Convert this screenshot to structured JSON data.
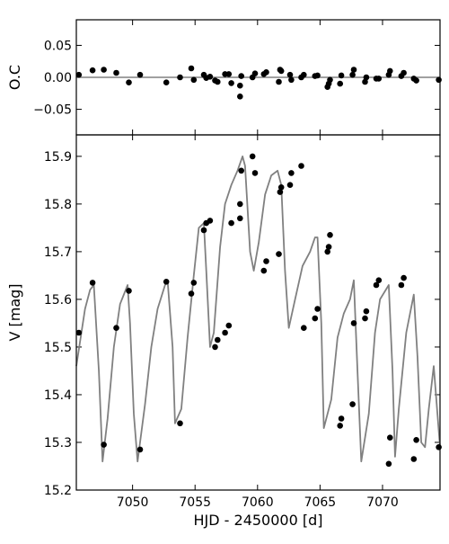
{
  "chart_data": [
    {
      "type": "scatter",
      "ylabel": "O.C",
      "xlim": [
        7045.5,
        7074.6
      ],
      "ylim": [
        0.09,
        -0.09
      ],
      "y_inverted": true,
      "yticks": [
        -0.05,
        0.0,
        0.05
      ],
      "ytick_labels": [
        "−0.05",
        "0.00",
        "0.05"
      ],
      "xticks": [
        7050,
        7055,
        7060,
        7065,
        7070
      ],
      "reference_line": 0.0,
      "reference_line_color": "#808080",
      "point_color": "#000000",
      "series": [
        {
          "x": [
            7045.7,
            7046.8,
            7047.7,
            7048.7,
            7049.7,
            7050.6,
            7052.7,
            7053.8,
            7054.7,
            7054.9,
            7055.7,
            7055.9,
            7056.2,
            7056.6,
            7056.8,
            7057.4,
            7057.7,
            7057.9,
            7058.6,
            7058.6,
            7058.7,
            7059.6,
            7059.8,
            7060.5,
            7060.7,
            7061.7,
            7061.8,
            7061.9,
            7062.6,
            7062.7,
            7063.5,
            7063.7,
            7064.6,
            7064.8,
            7065.6,
            7065.7,
            7065.8,
            7066.6,
            7066.7,
            7067.6,
            7067.7,
            7068.6,
            7068.7,
            7069.5,
            7069.7,
            7070.5,
            7070.6,
            7071.5,
            7071.7,
            7072.5,
            7072.7,
            7074.5
          ],
          "y": [
            0.004,
            0.011,
            0.012,
            0.007,
            -0.008,
            0.004,
            -0.008,
            0.0,
            0.014,
            -0.004,
            0.004,
            -0.001,
            0.001,
            -0.005,
            -0.007,
            0.005,
            0.005,
            -0.009,
            -0.03,
            -0.013,
            0.002,
            0.0,
            0.006,
            0.005,
            0.008,
            -0.007,
            0.012,
            0.01,
            0.004,
            -0.004,
            0.0,
            0.004,
            0.002,
            0.003,
            -0.015,
            -0.01,
            -0.004,
            -0.01,
            0.003,
            0.004,
            0.012,
            -0.007,
            0.0,
            -0.002,
            -0.002,
            0.004,
            0.01,
            0.002,
            0.007,
            -0.002,
            -0.005,
            -0.004
          ]
        }
      ]
    },
    {
      "type": "line",
      "xlabel": "HJD - 2450000 [d]",
      "ylabel": "V [mag]",
      "xlim": [
        7045.5,
        7074.6
      ],
      "ylim": [
        15.945,
        15.2
      ],
      "y_inverted": true,
      "xticks": [
        7050,
        7055,
        7060,
        7065,
        7070
      ],
      "xtick_labels": [
        "7050",
        "7055",
        "7060",
        "7065",
        "7070"
      ],
      "yticks": [
        15.2,
        15.3,
        15.4,
        15.5,
        15.6,
        15.7,
        15.8,
        15.9
      ],
      "ytick_labels": [
        "15.2",
        "15.3",
        "15.4",
        "15.5",
        "15.6",
        "15.7",
        "15.8",
        "15.9"
      ],
      "line_color": "#808080",
      "point_color": "#000000",
      "series": [
        {
          "role": "model",
          "x": [
            7045.5,
            7046.2,
            7046.6,
            7046.9,
            7047.3,
            7047.6,
            7048.0,
            7048.5,
            7049.0,
            7049.6,
            7049.8,
            7050.1,
            7050.4,
            7051.0,
            7051.5,
            7052.0,
            7052.6,
            7052.8,
            7053.2,
            7053.4,
            7053.9,
            7054.4,
            7054.9,
            7055.3,
            7055.7,
            7055.9,
            7056.2,
            7056.5,
            7057.0,
            7057.4,
            7057.9,
            7058.4,
            7058.8,
            7059.0,
            7059.4,
            7059.7,
            7060.1,
            7060.6,
            7061.1,
            7061.6,
            7061.9,
            7062.2,
            7062.5,
            7063.0,
            7063.6,
            7064.2,
            7064.6,
            7064.8,
            7065.1,
            7065.3,
            7065.9,
            7066.4,
            7066.9,
            7067.4,
            7067.7,
            7068.0,
            7068.3,
            7068.9,
            7069.4,
            7069.8,
            7070.5,
            7070.8,
            7071.0,
            7071.3,
            7071.9,
            7072.5,
            7072.8,
            7073.1,
            7073.4,
            7073.7,
            7074.1,
            7074.6
          ],
          "y": [
            15.46,
            15.58,
            15.62,
            15.63,
            15.45,
            15.26,
            15.35,
            15.5,
            15.59,
            15.63,
            15.55,
            15.36,
            15.26,
            15.38,
            15.5,
            15.58,
            15.63,
            15.64,
            15.5,
            15.34,
            15.37,
            15.52,
            15.65,
            15.75,
            15.76,
            15.66,
            15.5,
            15.53,
            15.71,
            15.8,
            15.84,
            15.87,
            15.9,
            15.88,
            15.7,
            15.66,
            15.72,
            15.82,
            15.86,
            15.87,
            15.84,
            15.66,
            15.54,
            15.6,
            15.67,
            15.7,
            15.73,
            15.73,
            15.55,
            15.33,
            15.39,
            15.52,
            15.57,
            15.6,
            15.64,
            15.45,
            15.26,
            15.36,
            15.53,
            15.6,
            15.63,
            15.45,
            15.27,
            15.37,
            15.53,
            15.61,
            15.48,
            15.3,
            15.29,
            15.37,
            15.46,
            15.29
          ]
        },
        {
          "role": "observed",
          "x": [
            7045.7,
            7046.8,
            7047.7,
            7048.7,
            7049.7,
            7050.6,
            7052.7,
            7053.8,
            7054.7,
            7054.9,
            7055.7,
            7055.9,
            7056.2,
            7056.6,
            7056.8,
            7057.4,
            7057.7,
            7057.9,
            7058.6,
            7058.6,
            7058.7,
            7059.6,
            7059.8,
            7060.5,
            7060.7,
            7061.7,
            7061.8,
            7061.9,
            7062.6,
            7062.7,
            7063.5,
            7063.7,
            7064.6,
            7064.8,
            7065.6,
            7065.7,
            7065.8,
            7066.6,
            7066.7,
            7067.6,
            7067.7,
            7068.6,
            7068.7,
            7069.5,
            7069.7,
            7070.5,
            7070.6,
            7071.5,
            7071.7,
            7072.5,
            7072.7,
            7074.5
          ],
          "y": [
            15.53,
            15.635,
            15.295,
            15.54,
            15.618,
            15.285,
            15.637,
            15.34,
            15.612,
            15.635,
            15.745,
            15.76,
            15.765,
            15.5,
            15.515,
            15.53,
            15.545,
            15.76,
            15.77,
            15.8,
            15.87,
            15.9,
            15.865,
            15.66,
            15.68,
            15.695,
            15.825,
            15.835,
            15.84,
            15.865,
            15.88,
            15.54,
            15.56,
            15.58,
            15.7,
            15.71,
            15.735,
            15.335,
            15.35,
            15.38,
            15.55,
            15.56,
            15.575,
            15.63,
            15.64,
            15.255,
            15.31,
            15.63,
            15.645,
            15.265,
            15.305,
            15.29
          ]
        }
      ]
    }
  ]
}
